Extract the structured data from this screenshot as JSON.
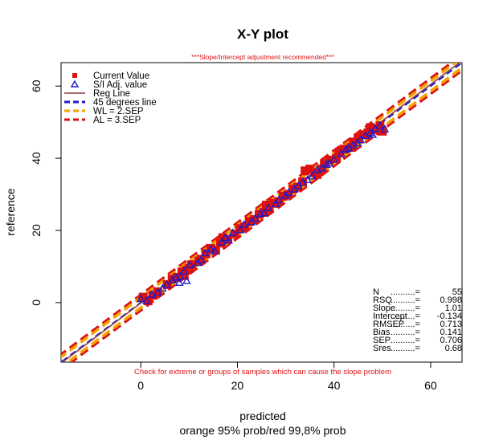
{
  "chart_data": {
    "type": "scatter",
    "title": "X-Y plot",
    "subtitle": "***Slope/Intercept adjustment recommended***",
    "xlabel": "predicted",
    "xlabel2": "orange 95% prob/red 99,8% prob",
    "ylabel": "reference",
    "bottom_note": "Check for extreme or groups of samples which can cause the slope problem",
    "xlim": [
      -16.5,
      66.5
    ],
    "ylim": [
      -16.5,
      66.5
    ],
    "x_ticks": [
      0,
      20,
      40,
      60
    ],
    "y_ticks": [
      0,
      20,
      40,
      60
    ],
    "grid": false,
    "legend_position": "top-left",
    "legend": [
      {
        "label": "Current Value",
        "symbol": "square",
        "color": "#dd1111"
      },
      {
        "label": "S/I Adj. value",
        "symbol": "triangle",
        "color": "#1a1acc"
      },
      {
        "label": "Reg Line",
        "symbol": "line",
        "color": "#8b3a3a"
      },
      {
        "label": "45 degrees line",
        "symbol": "dash",
        "color": "#1a1acc"
      },
      {
        "label": "WL = 2.SEP",
        "symbol": "dash",
        "color": "#f4a300"
      },
      {
        "label": "AL = 3.SEP",
        "symbol": "dash",
        "color": "#dd1111"
      }
    ],
    "stats": [
      {
        "label": "N",
        "value": "55"
      },
      {
        "label": "RSQ",
        "value": "0.998"
      },
      {
        "label": "Slope",
        "value": "1.01"
      },
      {
        "label": "Intercept",
        "value": "-0.134"
      },
      {
        "label": "RMSEP",
        "value": "0.713"
      },
      {
        "label": "Bias",
        "value": "0.141"
      },
      {
        "label": "SEP",
        "value": "0.706"
      },
      {
        "label": "Sres",
        "value": "0.68"
      }
    ],
    "lines": {
      "reg": {
        "slope": 1.01,
        "intercept": -0.134
      },
      "sep": 0.706,
      "wl_k": 2,
      "al_k": 3
    },
    "series": [
      {
        "name": "Current Value",
        "color": "#dd1111",
        "points": [
          [
            0.5,
            1.5
          ],
          [
            1.5,
            0.5
          ],
          [
            2.5,
            2.0
          ],
          [
            5.5,
            5.0
          ],
          [
            6.5,
            6.5
          ],
          [
            7.5,
            7.0
          ],
          [
            8.5,
            8.5
          ],
          [
            9.5,
            9.0
          ],
          [
            10.5,
            10.5
          ],
          [
            12.0,
            11.5
          ],
          [
            13.5,
            13.5
          ],
          [
            14.5,
            15.0
          ],
          [
            15.5,
            14.5
          ],
          [
            16.5,
            16.5
          ],
          [
            18.0,
            17.5
          ],
          [
            19.5,
            19.0
          ],
          [
            20.5,
            20.5
          ],
          [
            21.5,
            21.0
          ],
          [
            22.5,
            22.5
          ],
          [
            23.5,
            23.0
          ],
          [
            24.5,
            24.5
          ],
          [
            26.5,
            26.0
          ],
          [
            27.5,
            27.5
          ],
          [
            28.5,
            28.0
          ],
          [
            29.5,
            29.5
          ],
          [
            30.5,
            30.0
          ],
          [
            31.5,
            31.5
          ],
          [
            32.5,
            32.0
          ],
          [
            33.5,
            33.5
          ],
          [
            34.0,
            36.5
          ],
          [
            35.0,
            37.0
          ],
          [
            36.0,
            36.0
          ],
          [
            36.5,
            35.5
          ],
          [
            38.0,
            38.5
          ],
          [
            39.0,
            39.5
          ],
          [
            40.5,
            40.0
          ],
          [
            42.0,
            42.5
          ],
          [
            43.5,
            43.0
          ],
          [
            45.0,
            45.5
          ],
          [
            46.0,
            46.5
          ],
          [
            47.0,
            47.0
          ],
          [
            47.5,
            48.5
          ],
          [
            48.5,
            48.0
          ],
          [
            49.5,
            49.0
          ],
          [
            50.0,
            47.5
          ],
          [
            9.0,
            7.5
          ],
          [
            10.0,
            9.5
          ],
          [
            17.0,
            18.0
          ],
          [
            25.5,
            25.0
          ],
          [
            44.0,
            44.5
          ],
          [
            41.0,
            41.5
          ],
          [
            12.5,
            12.0
          ],
          [
            3.5,
            3.0
          ],
          [
            37.5,
            37.0
          ],
          [
            26.0,
            27.0
          ]
        ]
      },
      {
        "name": "S/I Adj. value",
        "color": "#1a1acc",
        "points": [
          [
            0.0,
            1.0
          ],
          [
            1.2,
            0.4
          ],
          [
            2.3,
            2.2
          ],
          [
            5.4,
            4.9
          ],
          [
            6.6,
            6.2
          ],
          [
            7.3,
            6.9
          ],
          [
            8.2,
            7.2
          ],
          [
            9.0,
            8.6
          ],
          [
            10.2,
            10.4
          ],
          [
            11.8,
            11.0
          ],
          [
            13.3,
            13.7
          ],
          [
            14.5,
            14.8
          ],
          [
            15.3,
            14.2
          ],
          [
            16.8,
            16.7
          ],
          [
            18.2,
            17.2
          ],
          [
            19.0,
            19.3
          ],
          [
            20.6,
            20.1
          ],
          [
            21.4,
            21.6
          ],
          [
            22.9,
            22.3
          ],
          [
            23.7,
            23.3
          ],
          [
            24.8,
            24.6
          ],
          [
            26.4,
            26.2
          ],
          [
            27.9,
            27.3
          ],
          [
            28.6,
            28.4
          ],
          [
            29.9,
            29.6
          ],
          [
            30.6,
            30.4
          ],
          [
            31.8,
            31.4
          ],
          [
            32.6,
            32.3
          ],
          [
            34.5,
            34.0
          ],
          [
            35.5,
            35.0
          ],
          [
            36.5,
            36.8
          ],
          [
            38.5,
            38.2
          ],
          [
            40.0,
            39.6
          ],
          [
            41.5,
            41.2
          ],
          [
            42.5,
            42.4
          ],
          [
            44.0,
            43.6
          ],
          [
            45.5,
            45.0
          ],
          [
            46.5,
            46.2
          ],
          [
            47.5,
            47.0
          ],
          [
            48.5,
            48.2
          ],
          [
            49.5,
            49.0
          ],
          [
            50.5,
            48.0
          ],
          [
            9.5,
            6.0
          ],
          [
            8.0,
            5.5
          ],
          [
            12.5,
            11.8
          ],
          [
            17.5,
            17.9
          ],
          [
            25.5,
            24.8
          ],
          [
            33.5,
            33.2
          ],
          [
            37.5,
            37.2
          ],
          [
            39.0,
            38.6
          ],
          [
            43.0,
            42.7
          ],
          [
            3.5,
            2.8
          ],
          [
            4.5,
            3.9
          ],
          [
            44.8,
            44.2
          ],
          [
            48.0,
            46.5
          ]
        ]
      }
    ]
  }
}
